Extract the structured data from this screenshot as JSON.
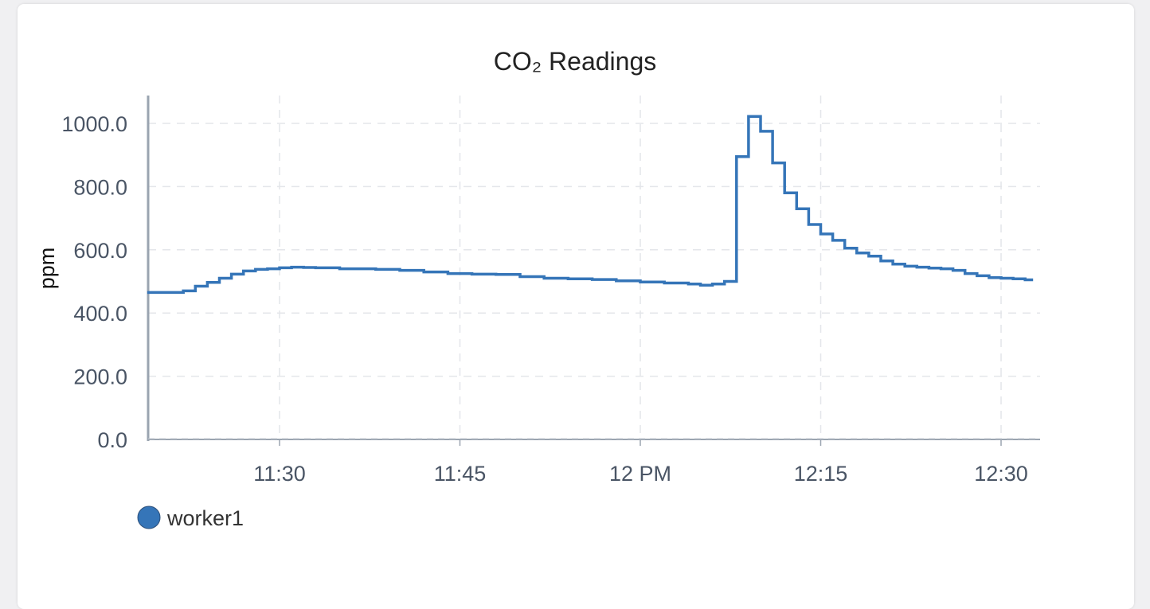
{
  "chart_data": {
    "type": "line",
    "title": "CO₂ Readings",
    "xlabel": "",
    "ylabel": "ppm",
    "line_style": "step",
    "ylim": [
      0,
      1000
    ],
    "yticks": [
      "0.0",
      "200.0",
      "400.0",
      "600.0",
      "800.0",
      "1000.0"
    ],
    "xticks": [
      "11:30",
      "11:45",
      "12 PM",
      "12:15",
      "12:30"
    ],
    "x_unit": "time of day",
    "legend_position": "bottom-left",
    "grid": true,
    "series": [
      {
        "name": "worker1",
        "color": "#3575b8",
        "x": [
          "11:19",
          "11:21",
          "11:22",
          "11:23",
          "11:24",
          "11:25",
          "11:26",
          "11:27",
          "11:28",
          "11:29",
          "11:30",
          "11:31",
          "11:32",
          "11:33",
          "11:35",
          "11:38",
          "11:40",
          "11:42",
          "11:44",
          "11:46",
          "11:48",
          "11:50",
          "11:52",
          "11:54",
          "11:56",
          "11:58",
          "12:00",
          "12:02",
          "12:04",
          "12:05",
          "12:06",
          "12:07",
          "12:08",
          "12:09",
          "12:10",
          "12:11",
          "12:12",
          "12:13",
          "12:14",
          "12:15",
          "12:16",
          "12:17",
          "12:18",
          "12:19",
          "12:20",
          "12:21",
          "12:22",
          "12:23",
          "12:24",
          "12:25",
          "12:26",
          "12:27",
          "12:28",
          "12:29",
          "12:30",
          "12:31",
          "12:32"
        ],
        "values": [
          465,
          465,
          470,
          485,
          497,
          510,
          523,
          533,
          538,
          540,
          543,
          545,
          544,
          543,
          540,
          538,
          535,
          530,
          525,
          523,
          522,
          515,
          510,
          508,
          506,
          502,
          498,
          495,
          492,
          488,
          492,
          500,
          895,
          1022,
          975,
          875,
          780,
          730,
          680,
          650,
          630,
          605,
          590,
          580,
          565,
          555,
          548,
          545,
          542,
          540,
          535,
          525,
          518,
          512,
          510,
          508,
          505
        ]
      }
    ]
  }
}
